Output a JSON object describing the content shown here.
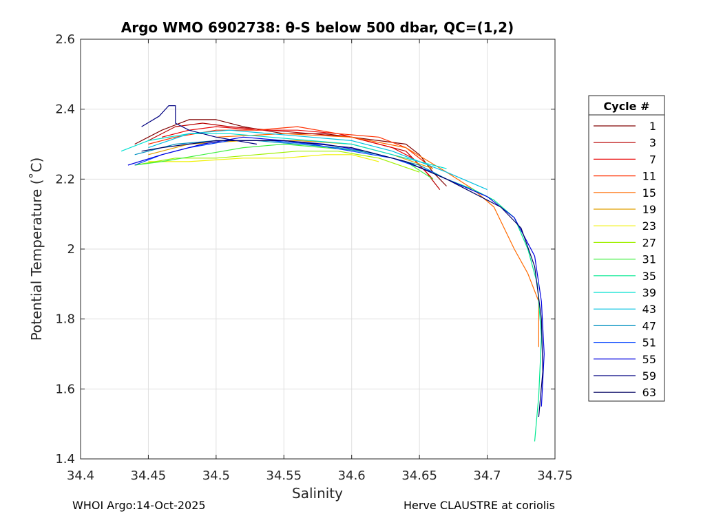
{
  "chart_data": {
    "type": "line",
    "title": "Argo WMO 6902738: θ-S below 500 dbar,  QC=(1,2)",
    "xlabel": "Salinity",
    "ylabel": "Potential Temperature (˚C)",
    "xlim": [
      34.4,
      34.75
    ],
    "ylim": [
      1.4,
      2.6
    ],
    "x_ticks": [
      "34.4",
      "34.45",
      "34.5",
      "34.55",
      "34.6",
      "34.65",
      "34.7",
      "34.75"
    ],
    "y_ticks": [
      "1.4",
      "1.6",
      "1.8",
      "2",
      "2.2",
      "2.4",
      "2.6"
    ],
    "grid": true,
    "legend_title": "Cycle #",
    "legend_placement": "right",
    "series": [
      {
        "name": "1",
        "color": "#800000",
        "x": [
          34.44,
          34.46,
          34.48,
          34.5,
          34.52,
          34.55,
          34.58,
          34.6,
          34.62,
          34.64,
          34.65,
          34.66,
          34.67
        ],
        "y": [
          2.3,
          2.34,
          2.37,
          2.37,
          2.35,
          2.33,
          2.33,
          2.32,
          2.31,
          2.3,
          2.27,
          2.22,
          2.18
        ]
      },
      {
        "name": "3",
        "color": "#b80000",
        "x": [
          34.45,
          34.47,
          34.49,
          34.51,
          34.54,
          34.57,
          34.6,
          34.62,
          34.64,
          34.655,
          34.665
        ],
        "y": [
          2.31,
          2.35,
          2.36,
          2.35,
          2.34,
          2.33,
          2.32,
          2.3,
          2.28,
          2.22,
          2.17
        ]
      },
      {
        "name": "7",
        "color": "#e80000",
        "x": [
          34.46,
          34.48,
          34.5,
          34.53,
          34.56,
          34.59,
          34.61,
          34.63,
          34.645,
          34.66
        ],
        "y": [
          2.32,
          2.34,
          2.35,
          2.34,
          2.34,
          2.33,
          2.31,
          2.29,
          2.26,
          2.2
        ]
      },
      {
        "name": "11",
        "color": "#ff3000",
        "x": [
          34.45,
          34.47,
          34.5,
          34.53,
          34.56,
          34.59,
          34.62,
          34.64,
          34.66
        ],
        "y": [
          2.3,
          2.32,
          2.34,
          2.34,
          2.35,
          2.33,
          2.32,
          2.29,
          2.23
        ]
      },
      {
        "name": "15",
        "color": "#ff6a00",
        "x": [
          34.5,
          34.55,
          34.6,
          34.64,
          34.67,
          34.69,
          34.705,
          34.72,
          34.73,
          34.738,
          34.738
        ],
        "y": [
          2.32,
          2.33,
          2.32,
          2.29,
          2.22,
          2.17,
          2.12,
          2.0,
          1.93,
          1.85,
          1.72
        ]
      },
      {
        "name": "19",
        "color": "#e0a000",
        "x": [
          34.45,
          34.48,
          34.52,
          34.56,
          34.6,
          34.63,
          34.66
        ],
        "y": [
          2.27,
          2.3,
          2.31,
          2.31,
          2.3,
          2.27,
          2.23
        ]
      },
      {
        "name": "23",
        "color": "#f0f000",
        "x": [
          34.45,
          34.48,
          34.52,
          34.55,
          34.58,
          34.6,
          34.62
        ],
        "y": [
          2.25,
          2.25,
          2.26,
          2.26,
          2.27,
          2.27,
          2.25
        ]
      },
      {
        "name": "27",
        "color": "#a0f000",
        "x": [
          34.44,
          34.47,
          34.5,
          34.53,
          34.56,
          34.59,
          34.62,
          34.65
        ],
        "y": [
          2.24,
          2.26,
          2.26,
          2.27,
          2.28,
          2.28,
          2.26,
          2.22
        ]
      },
      {
        "name": "31",
        "color": "#40f040",
        "x": [
          34.44,
          34.46,
          34.49,
          34.52,
          34.55,
          34.58,
          34.61,
          34.64,
          34.66
        ],
        "y": [
          2.24,
          2.25,
          2.27,
          2.29,
          2.3,
          2.29,
          2.28,
          2.25,
          2.2
        ]
      },
      {
        "name": "35",
        "color": "#00e890",
        "x": [
          34.67,
          34.69,
          34.705,
          34.72,
          34.73,
          34.737,
          34.74,
          34.738,
          34.735
        ],
        "y": [
          2.2,
          2.17,
          2.14,
          2.09,
          2.0,
          1.9,
          1.75,
          1.58,
          1.45
        ]
      },
      {
        "name": "39",
        "color": "#00e0d0",
        "x": [
          34.43,
          34.45,
          34.48,
          34.51,
          34.54,
          34.57,
          34.6,
          34.63,
          34.67
        ],
        "y": [
          2.28,
          2.31,
          2.33,
          2.33,
          2.32,
          2.31,
          2.3,
          2.27,
          2.23
        ]
      },
      {
        "name": "43",
        "color": "#00c0e0",
        "x": [
          34.45,
          34.48,
          34.51,
          34.54,
          34.57,
          34.6,
          34.63,
          34.67,
          34.7
        ],
        "y": [
          2.29,
          2.33,
          2.34,
          2.33,
          2.32,
          2.31,
          2.28,
          2.22,
          2.17
        ]
      },
      {
        "name": "47",
        "color": "#0090c0",
        "x": [
          34.44,
          34.47,
          34.5,
          34.53,
          34.56,
          34.59,
          34.62,
          34.65,
          34.67
        ],
        "y": [
          2.27,
          2.3,
          2.31,
          2.31,
          2.3,
          2.29,
          2.27,
          2.24,
          2.2
        ]
      },
      {
        "name": "51",
        "color": "#0040ff",
        "x": [
          34.44,
          34.46,
          34.48,
          34.51,
          34.54,
          34.57,
          34.6,
          34.63,
          34.66
        ],
        "y": [
          2.24,
          2.27,
          2.29,
          2.31,
          2.31,
          2.3,
          2.28,
          2.26,
          2.22
        ]
      },
      {
        "name": "55",
        "color": "#0000e0",
        "x": [
          34.435,
          34.46,
          34.49,
          34.52,
          34.55,
          34.58,
          34.61,
          34.64,
          34.67,
          34.7,
          34.72,
          34.735,
          34.74,
          34.742,
          34.74
        ],
        "y": [
          2.24,
          2.27,
          2.3,
          2.32,
          2.31,
          2.3,
          2.28,
          2.25,
          2.2,
          2.15,
          2.09,
          1.98,
          1.85,
          1.7,
          1.55
        ]
      },
      {
        "name": "59",
        "color": "#000080",
        "x": [
          34.445,
          34.458,
          34.465,
          34.47,
          34.47,
          34.48,
          34.5,
          34.53
        ],
        "y": [
          2.35,
          2.38,
          2.41,
          2.41,
          2.36,
          2.34,
          2.32,
          2.3
        ]
      },
      {
        "name": "63",
        "color": "#000060",
        "x": [
          34.445,
          34.46,
          34.5,
          34.55,
          34.6,
          34.64,
          34.67,
          34.69,
          34.71,
          34.725,
          34.735,
          34.74,
          34.741,
          34.738
        ],
        "y": [
          2.28,
          2.29,
          2.31,
          2.31,
          2.29,
          2.25,
          2.2,
          2.16,
          2.12,
          2.06,
          1.95,
          1.8,
          1.65,
          1.52
        ]
      }
    ]
  },
  "footer": {
    "left": "WHOI Argo:14-Oct-2025",
    "right": "Herve CLAUSTRE at coriolis"
  }
}
